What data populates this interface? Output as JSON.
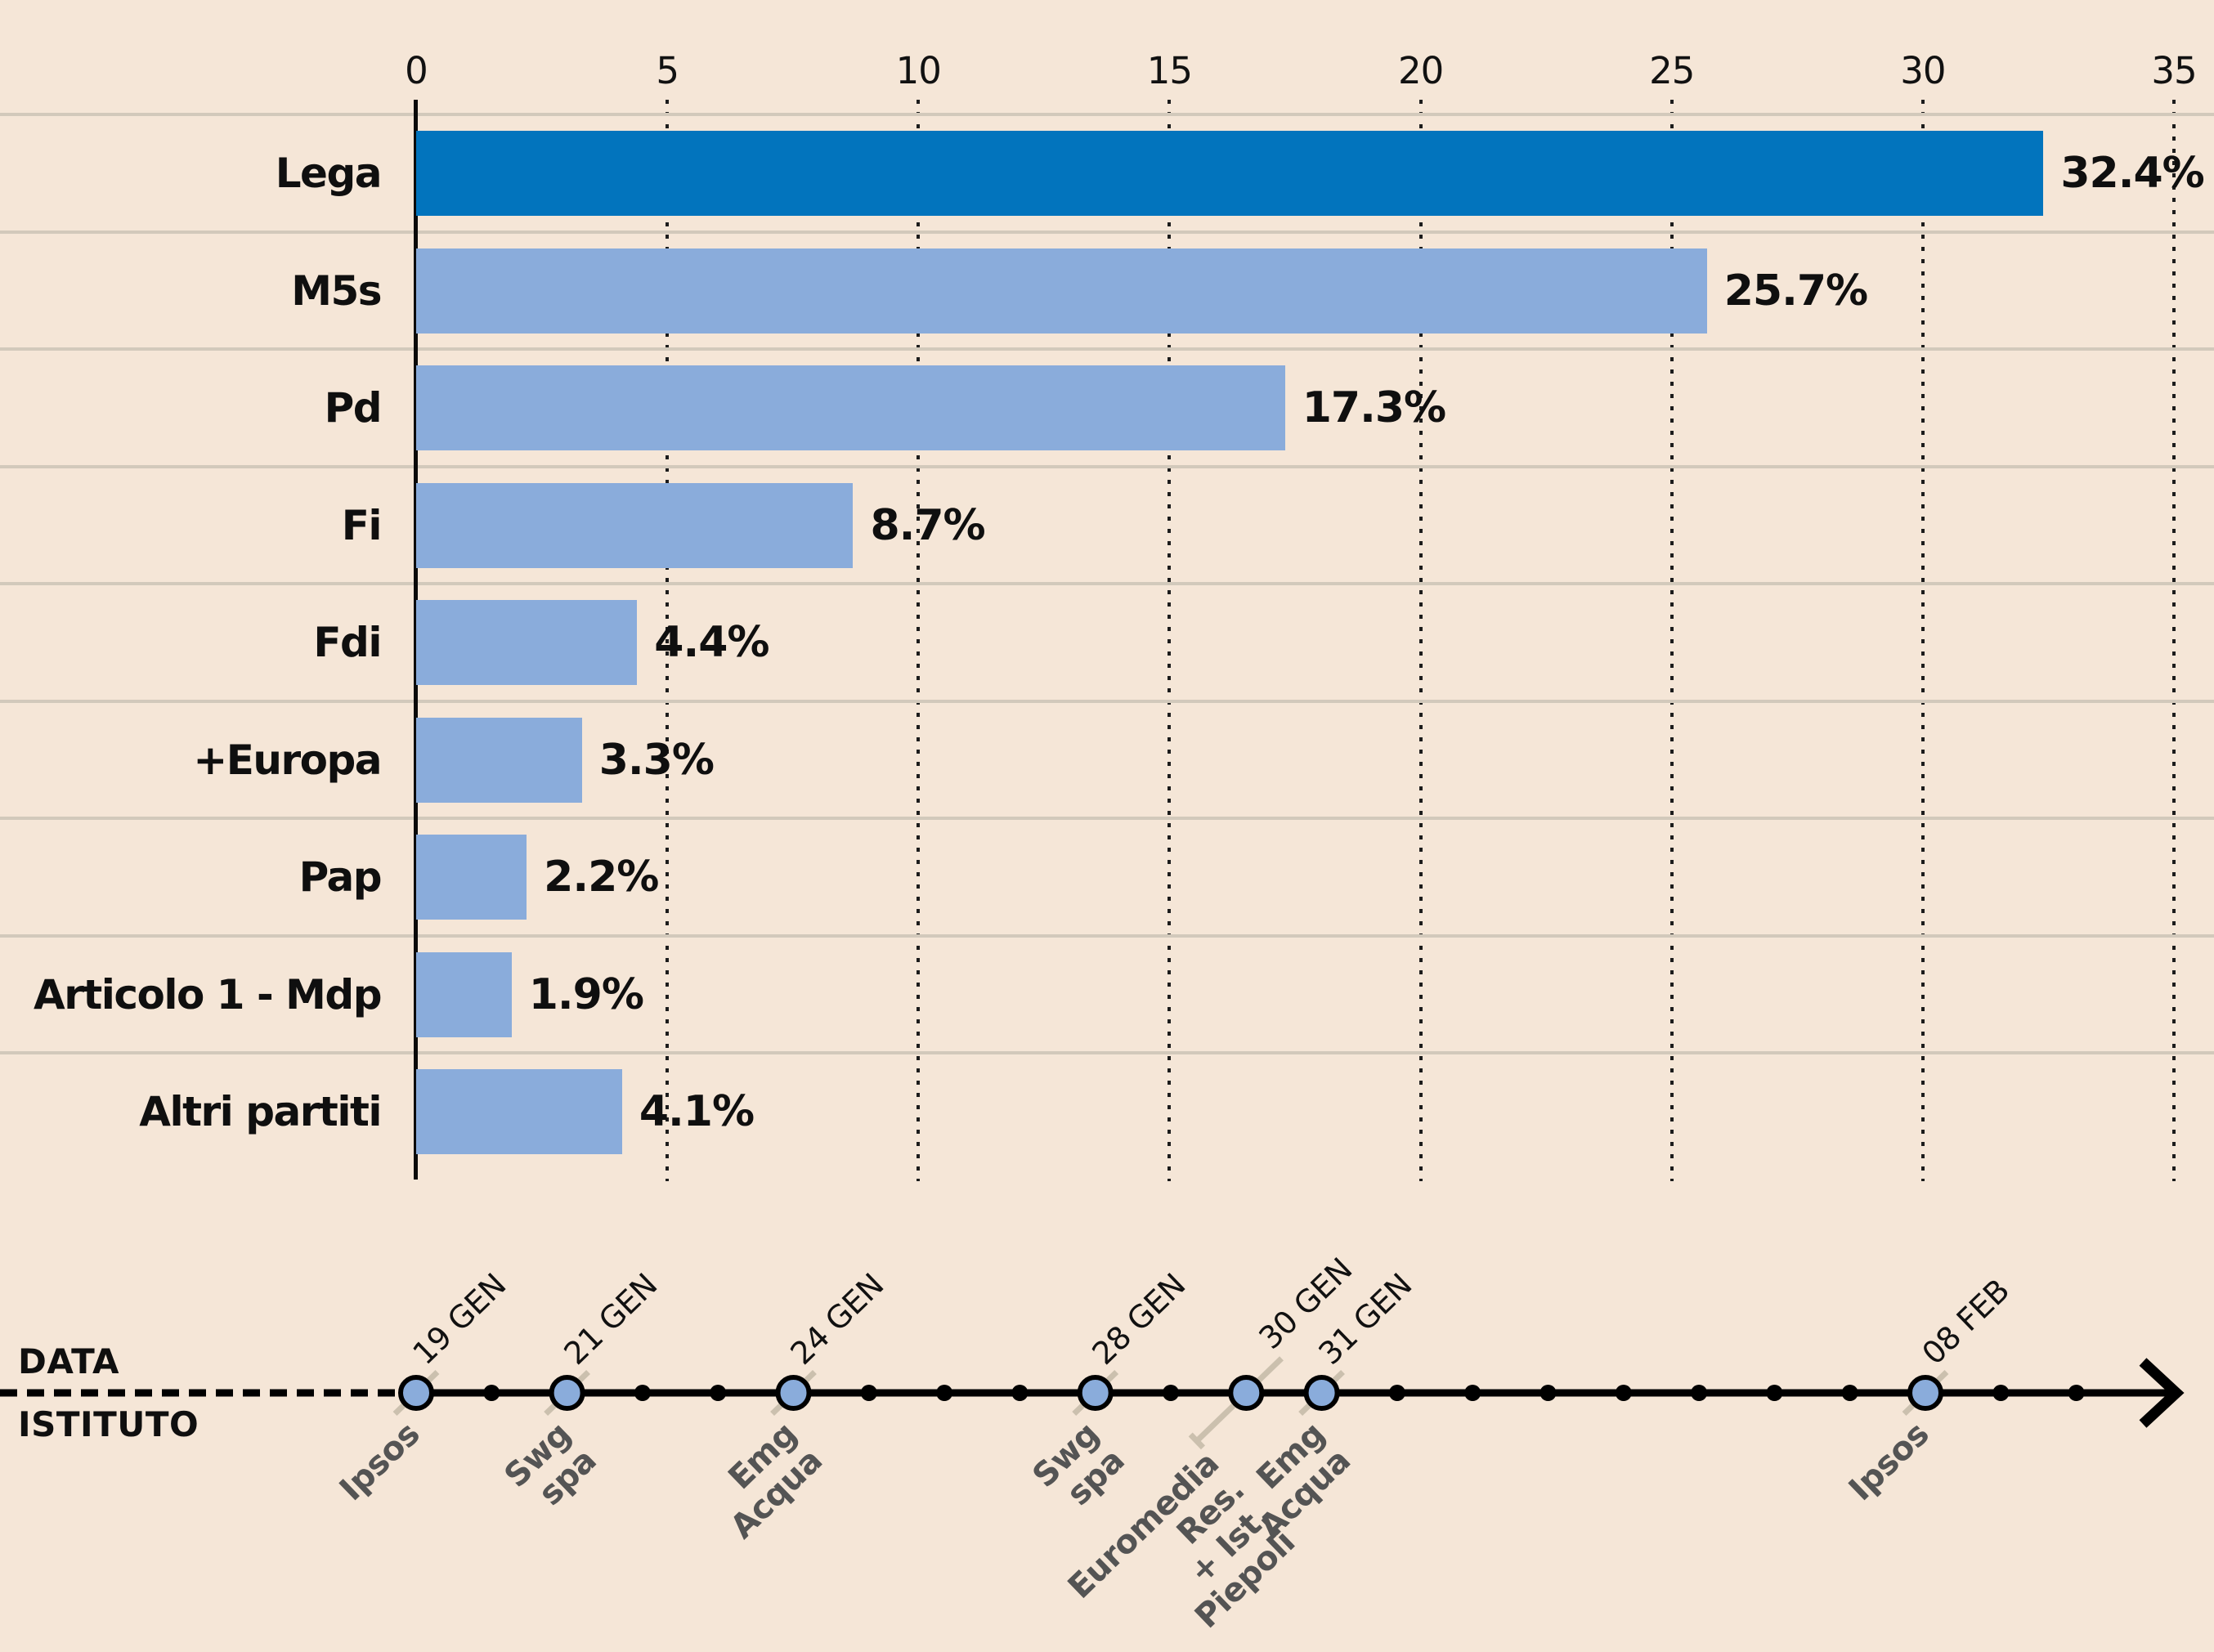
{
  "chart_data": {
    "type": "bar",
    "orientation": "horizontal",
    "title": "",
    "categories": [
      "Lega",
      "M5s",
      "Pd",
      "Fi",
      "Fdi",
      "+Europa",
      "Pap",
      "Articolo 1 - Mdp",
      "Altri partiti"
    ],
    "values": [
      32.4,
      25.7,
      17.3,
      8.7,
      4.4,
      3.3,
      2.2,
      1.9,
      4.1
    ],
    "value_labels": [
      "32.4%",
      "25.7%",
      "17.3%",
      "8.7%",
      "4.4%",
      "3.3%",
      "2.2%",
      "1.9%",
      "4.1%"
    ],
    "highlight_category": "Lega",
    "xlim": [
      0,
      35
    ],
    "x_ticks": [
      "0",
      "5",
      "10",
      "15",
      "20",
      "25",
      "30",
      "35"
    ],
    "grid": "dotted-vertical",
    "legend": "none"
  },
  "timeline": {
    "axis_title_date": "DATA",
    "axis_title_institute": "ISTITUTO",
    "points": [
      {
        "date": "19 GEN",
        "institute": "Ipsos",
        "day": 0
      },
      {
        "date": "21 GEN",
        "institute": "Swg spa",
        "day": 2
      },
      {
        "date": "24 GEN",
        "institute": "Emg Acqua",
        "day": 5
      },
      {
        "date": "28 GEN",
        "institute": "Swg spa",
        "day": 9
      },
      {
        "date": "30 GEN",
        "institute": "Euromedia Res.\n+ Ist. Piepoli",
        "day": 11
      },
      {
        "date": "31 GEN",
        "institute": "Emg Acqua",
        "day": 12
      },
      {
        "date": "08 FEB",
        "institute": "Ipsos",
        "day": 20
      }
    ],
    "minor_days": [
      1,
      3,
      4,
      6,
      7,
      8,
      10,
      13,
      14,
      15,
      16,
      17,
      18,
      19,
      21,
      22
    ]
  },
  "colors": {
    "background": "#f5e6d7",
    "bar_highlight": "#0274bd",
    "bar_default": "#8aacdb",
    "separator": "#d2c9bb",
    "grid_dots": "#1c1c1c",
    "timeline_line": "#000000",
    "dot_fill": "#8aacdb",
    "institute_text": "#545454",
    "leader": "#cbc0ae"
  }
}
